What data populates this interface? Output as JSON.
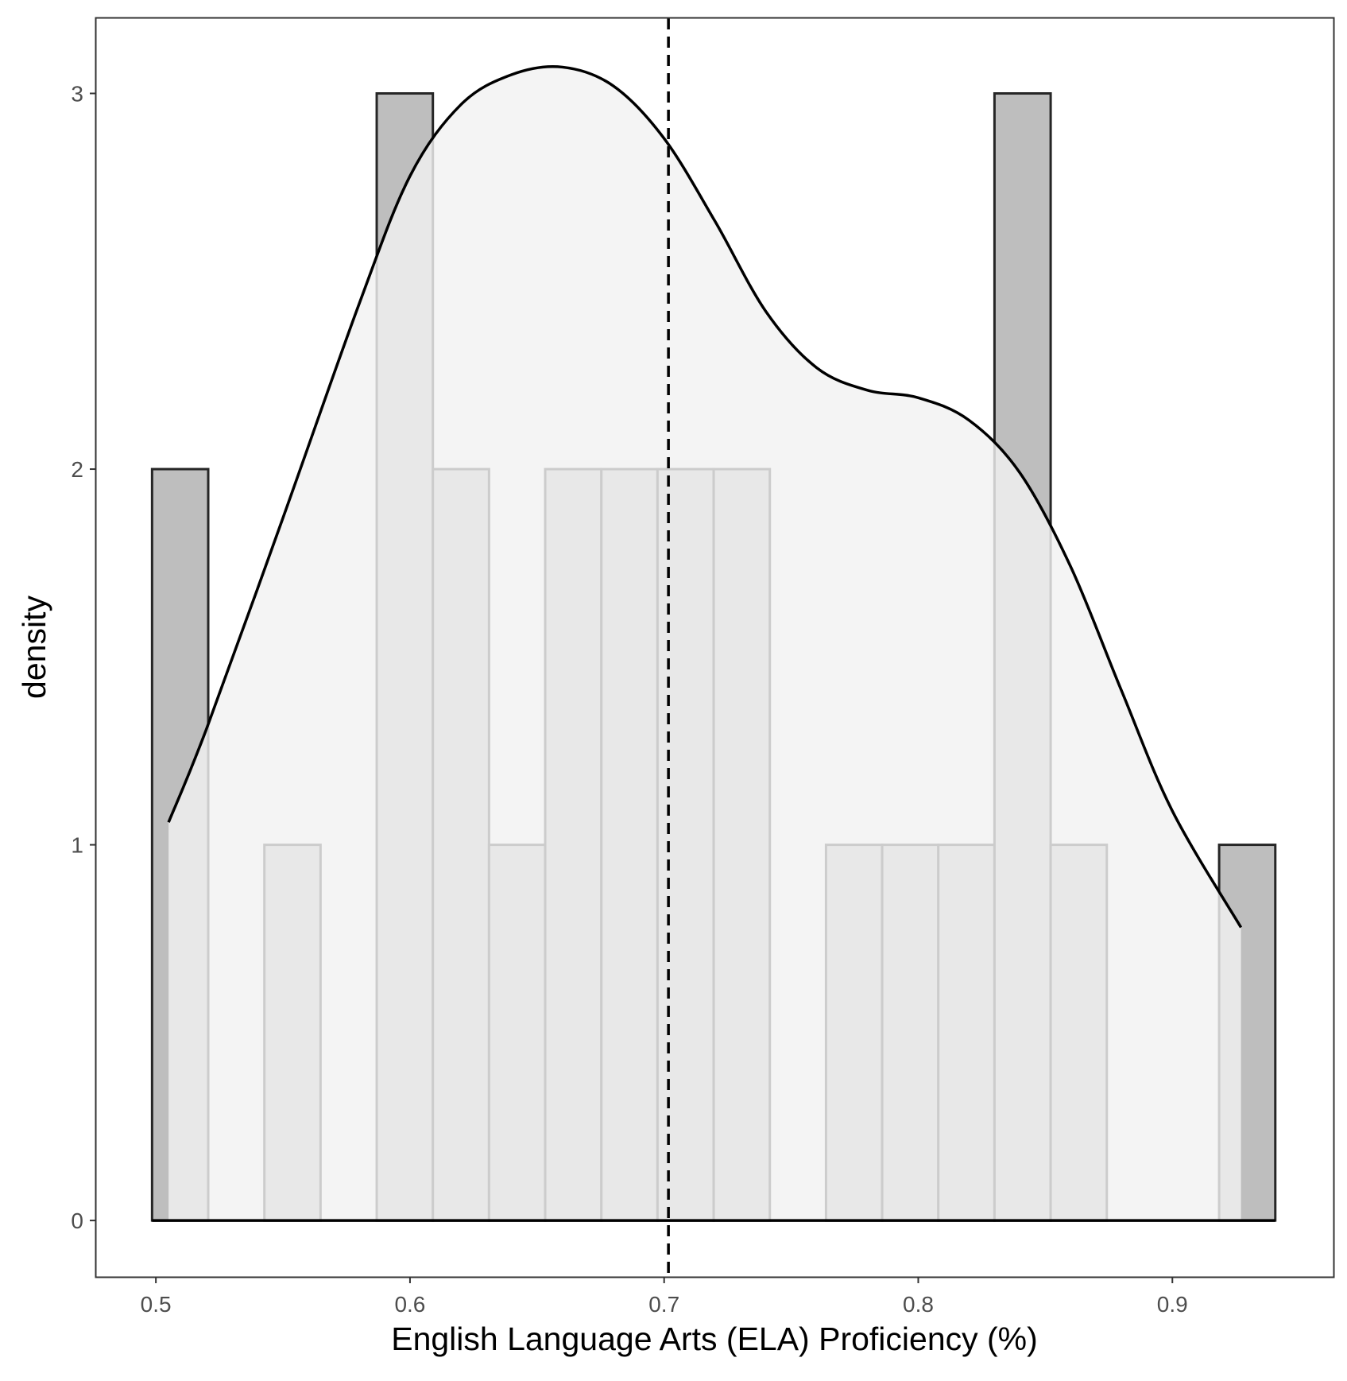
{
  "chart_data": {
    "type": "bar",
    "subtype": "histogram-with-density",
    "xlabel": "English Language Arts (ELA) Proficiency (%)",
    "ylabel": "density",
    "xlim": [
      0.4765,
      0.9634
    ],
    "ylim": [
      -0.15,
      3.2
    ],
    "x_ticks": [
      0.5,
      0.6,
      0.7,
      0.8,
      0.9
    ],
    "x_tick_labels": [
      "0.5",
      "0.6",
      "0.7",
      "0.8",
      "0.9"
    ],
    "y_ticks": [
      0,
      1,
      2,
      3
    ],
    "y_tick_labels": [
      "0",
      "1",
      "2",
      "3"
    ],
    "grid": false,
    "bins": [
      {
        "x0": 0.4985,
        "x1": 0.5206,
        "count": 2
      },
      {
        "x0": 0.5206,
        "x1": 0.5427,
        "count": 0
      },
      {
        "x0": 0.5427,
        "x1": 0.5648,
        "count": 1
      },
      {
        "x0": 0.5648,
        "x1": 0.5869,
        "count": 0
      },
      {
        "x0": 0.5869,
        "x1": 0.609,
        "count": 3
      },
      {
        "x0": 0.609,
        "x1": 0.6311,
        "count": 2
      },
      {
        "x0": 0.6311,
        "x1": 0.6532,
        "count": 1
      },
      {
        "x0": 0.6532,
        "x1": 0.6753,
        "count": 2
      },
      {
        "x0": 0.6753,
        "x1": 0.6974,
        "count": 2
      },
      {
        "x0": 0.6974,
        "x1": 0.7195,
        "count": 2
      },
      {
        "x0": 0.7195,
        "x1": 0.7416,
        "count": 2
      },
      {
        "x0": 0.7416,
        "x1": 0.7637,
        "count": 0
      },
      {
        "x0": 0.7637,
        "x1": 0.7858,
        "count": 1
      },
      {
        "x0": 0.7858,
        "x1": 0.8079,
        "count": 1
      },
      {
        "x0": 0.8079,
        "x1": 0.83,
        "count": 1
      },
      {
        "x0": 0.83,
        "x1": 0.8521,
        "count": 3
      },
      {
        "x0": 0.8521,
        "x1": 0.8742,
        "count": 1
      },
      {
        "x0": 0.8742,
        "x1": 0.8963,
        "count": 0
      },
      {
        "x0": 0.8963,
        "x1": 0.9184,
        "count": 0
      },
      {
        "x0": 0.9184,
        "x1": 0.9405,
        "count": 1
      }
    ],
    "density_curve": {
      "x": [
        0.505,
        0.52,
        0.55,
        0.58,
        0.6,
        0.62,
        0.64,
        0.66,
        0.68,
        0.7,
        0.72,
        0.74,
        0.76,
        0.78,
        0.8,
        0.82,
        0.84,
        0.86,
        0.88,
        0.9,
        0.927
      ],
      "y": [
        1.06,
        1.31,
        1.87,
        2.44,
        2.78,
        2.97,
        3.05,
        3.07,
        3.02,
        2.88,
        2.66,
        2.42,
        2.27,
        2.21,
        2.19,
        2.13,
        1.99,
        1.74,
        1.41,
        1.09,
        0.78
      ]
    },
    "mean_line": {
      "x": 0.7017,
      "style": "dashed"
    },
    "colors": {
      "bar_fill": "#bebebe",
      "bar_stroke": "#262626",
      "density_fill": "#f1f1f1",
      "density_stroke": "#000000",
      "mean_line": "#000000",
      "panel_border": "#333333",
      "tick_label": "#4d4d4d"
    }
  }
}
